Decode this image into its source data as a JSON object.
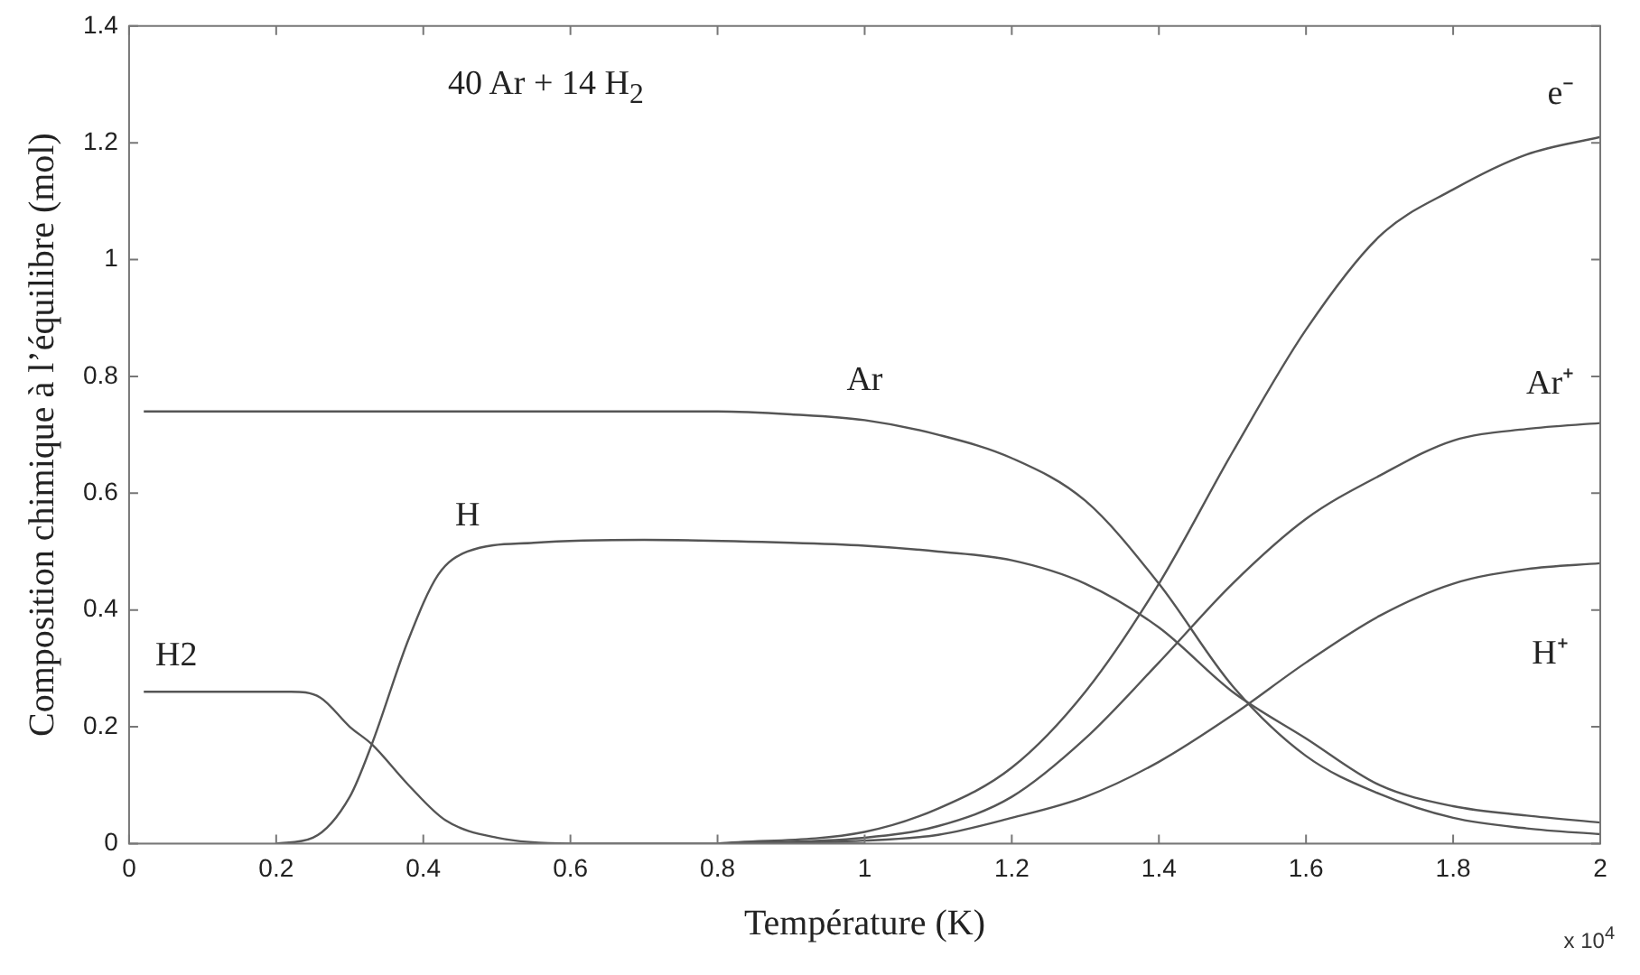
{
  "chart_data": {
    "type": "line",
    "xlabel": "Température (K)",
    "ylabel": "Composition chimique à l’équilibre (mol)",
    "annotations": [
      "40 Ar + 14 H$_{2}$",
      "x 10$^{4}$"
    ],
    "xlim": [
      0,
      2
    ],
    "xticks": [
      0,
      0.2,
      0.4,
      0.6,
      0.8,
      1,
      1.2,
      1.4,
      1.6,
      1.8,
      2
    ],
    "ylim": [
      0,
      1.4
    ],
    "yticks": [
      0,
      0.2,
      0.4,
      0.6,
      0.8,
      1,
      1.2,
      1.4
    ],
    "grid": false,
    "legend": false,
    "marker": "none",
    "line_style": "solid",
    "series": [
      {
        "name": "Ar",
        "color": "#555555",
        "x": [
          0.02,
          0.4,
          0.8,
          0.9,
          1.0,
          1.1,
          1.2,
          1.3,
          1.4,
          1.5,
          1.6,
          1.7,
          1.8,
          1.9,
          2.0
        ],
        "values": [
          0.74,
          0.74,
          0.74,
          0.735,
          0.725,
          0.7,
          0.66,
          0.587,
          0.445,
          0.27,
          0.15,
          0.085,
          0.044,
          0.026,
          0.016
        ]
      },
      {
        "name": "H",
        "color": "#555555",
        "x": [
          0.2,
          0.25,
          0.3,
          0.33,
          0.38,
          0.42,
          0.46,
          0.55,
          0.7,
          0.9,
          1.0,
          1.1,
          1.2,
          1.3,
          1.4,
          1.5,
          1.6,
          1.7,
          1.8,
          1.9,
          2.0
        ],
        "values": [
          0,
          0.01,
          0.08,
          0.17,
          0.35,
          0.46,
          0.5,
          0.515,
          0.52,
          0.515,
          0.51,
          0.5,
          0.485,
          0.445,
          0.37,
          0.26,
          0.18,
          0.1,
          0.064,
          0.048,
          0.036
        ]
      },
      {
        "name": "H2",
        "color": "#555555",
        "x": [
          0.02,
          0.22,
          0.26,
          0.3,
          0.33,
          0.38,
          0.43,
          0.5,
          0.6,
          1.0
        ],
        "values": [
          0.26,
          0.26,
          0.25,
          0.2,
          0.17,
          0.1,
          0.04,
          0.01,
          0,
          0
        ]
      },
      {
        "name": "e⁻",
        "color": "#555555",
        "x": [
          0.8,
          1.0,
          1.1,
          1.2,
          1.3,
          1.4,
          1.5,
          1.6,
          1.7,
          1.8,
          1.9,
          2.0
        ],
        "values": [
          0,
          0.02,
          0.06,
          0.13,
          0.26,
          0.445,
          0.67,
          0.88,
          1.04,
          1.12,
          1.18,
          1.21
        ]
      },
      {
        "name": "Ar⁺",
        "color": "#555555",
        "x": [
          0.8,
          1.0,
          1.1,
          1.2,
          1.3,
          1.4,
          1.5,
          1.6,
          1.7,
          1.8,
          1.9,
          2.0
        ],
        "values": [
          0,
          0.01,
          0.03,
          0.08,
          0.18,
          0.31,
          0.445,
          0.556,
          0.63,
          0.69,
          0.71,
          0.72
        ]
      },
      {
        "name": "H⁺",
        "color": "#555555",
        "x": [
          0.8,
          1.0,
          1.1,
          1.2,
          1.3,
          1.4,
          1.5,
          1.6,
          1.7,
          1.8,
          1.9,
          2.0
        ],
        "values": [
          0,
          0.005,
          0.015,
          0.044,
          0.08,
          0.14,
          0.22,
          0.31,
          0.39,
          0.445,
          0.47,
          0.48
        ]
      }
    ]
  }
}
